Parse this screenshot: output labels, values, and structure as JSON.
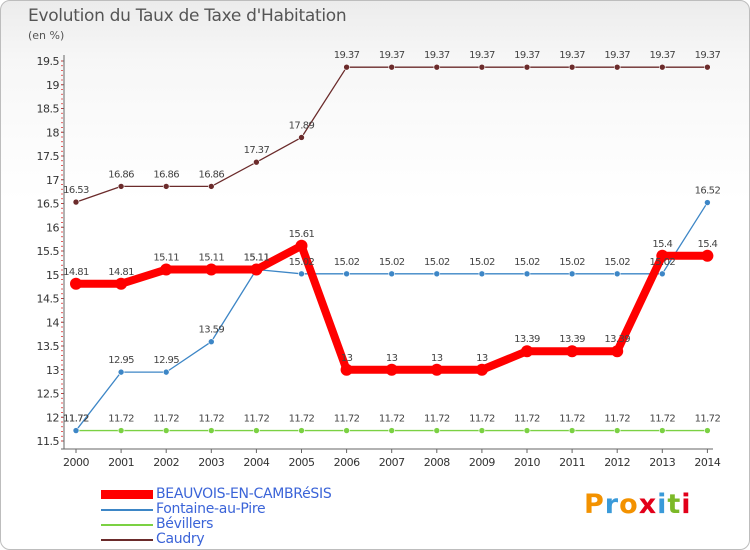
{
  "header": {
    "title": "Evolution du Taux de Taxe d'Habitation",
    "unit": "(en %)"
  },
  "brand": {
    "letters": [
      "P",
      "r",
      "o",
      "x",
      "i",
      "t",
      "i"
    ],
    "colors": [
      "#f39200",
      "#3a9ad9",
      "#f39200",
      "#e2001a",
      "#3a9ad9",
      "#7cb928",
      "#e2001a"
    ]
  },
  "chart_data": {
    "type": "line",
    "x": [
      "2000",
      "2001",
      "2002",
      "2003",
      "2004",
      "2005",
      "2006",
      "2007",
      "2008",
      "2009",
      "2010",
      "2011",
      "2012",
      "2013",
      "2014"
    ],
    "ylim": [
      11.5,
      19.5
    ],
    "yticks": [
      "11.5",
      "12",
      "12.5",
      "13",
      "13.5",
      "14",
      "14.5",
      "15",
      "15.5",
      "16",
      "16.5",
      "17",
      "17.5",
      "18",
      "18.5",
      "19",
      "19.5"
    ],
    "grid": false,
    "legend_position": "bottom-left",
    "series": [
      {
        "name": "BEAUVOIS-EN-CAMBRéSIS",
        "color": "#ff0000",
        "values": [
          14.81,
          14.81,
          15.11,
          15.11,
          15.11,
          15.61,
          13,
          13,
          13,
          13,
          13.39,
          13.39,
          13.39,
          15.4,
          15.4
        ],
        "labels": [
          "14.81",
          "14.81",
          "15.11",
          "15.11",
          "15.11",
          "15.61",
          "13",
          "13",
          "13",
          "13",
          "13.39",
          "13.39",
          "13.39",
          "15.4",
          "15.4"
        ]
      },
      {
        "name": "Fontaine-au-Pire",
        "color": "#3d86c6",
        "values": [
          11.72,
          12.95,
          12.95,
          13.59,
          15.11,
          15.02,
          15.02,
          15.02,
          15.02,
          15.02,
          15.02,
          15.02,
          15.02,
          15.02,
          16.52
        ],
        "labels": [
          "11.72",
          "12.95",
          "12.95",
          "13.59",
          "15.11",
          "15.02",
          "15.02",
          "15.02",
          "15.02",
          "15.02",
          "15.02",
          "15.02",
          "15.02",
          "15.02",
          "16.52"
        ]
      },
      {
        "name": "Bévillers",
        "color": "#7bd143",
        "values": [
          11.72,
          11.72,
          11.72,
          11.72,
          11.72,
          11.72,
          11.72,
          11.72,
          11.72,
          11.72,
          11.72,
          11.72,
          11.72,
          11.72,
          11.72
        ],
        "labels": [
          "11.72",
          "11.72",
          "11.72",
          "11.72",
          "11.72",
          "11.72",
          "11.72",
          "11.72",
          "11.72",
          "11.72",
          "11.72",
          "11.72",
          "11.72",
          "11.72",
          "11.72"
        ]
      },
      {
        "name": "Caudry",
        "color": "#6b2b2b",
        "values": [
          16.53,
          16.86,
          16.86,
          16.86,
          17.37,
          17.89,
          19.37,
          19.37,
          19.37,
          19.37,
          19.37,
          19.37,
          19.37,
          19.37,
          19.37
        ],
        "labels": [
          "16.53",
          "16.86",
          "16.86",
          "16.86",
          "17.37",
          "17.89",
          "19.37",
          "19.37",
          "19.37",
          "19.37",
          "19.37",
          "19.37",
          "19.37",
          "19.37",
          "19.37"
        ]
      }
    ]
  }
}
